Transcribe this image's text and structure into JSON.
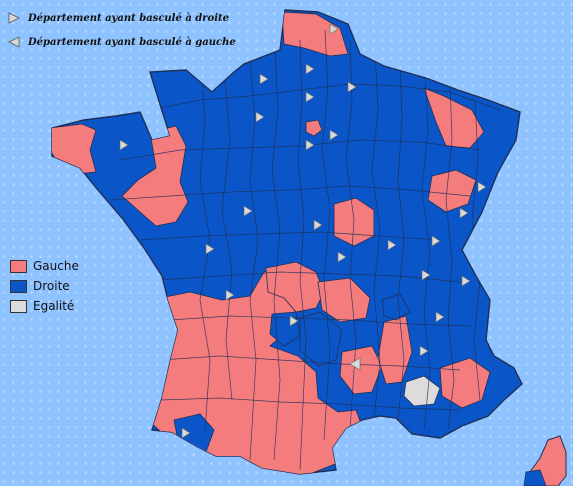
{
  "map": {
    "colors": {
      "gauche": "#f47c7c",
      "droite": "#0a56c9",
      "egalite": "#dcdcdc",
      "sea": "#8fc3ff",
      "border": "#1f2f55",
      "arrow": "#d8d8d8"
    },
    "legend_markers": [
      {
        "label": "Département ayant basculé à droite",
        "icon": "triangle-right-icon"
      },
      {
        "label": "Département ayant basculé à gauche",
        "icon": "triangle-left-icon"
      }
    ],
    "legend_colors": [
      {
        "label": "Gauche",
        "color": "#f47c7c"
      },
      {
        "label": "Droite",
        "color": "#0a56c9"
      },
      {
        "label": "Egalité",
        "color": "#dcdcdc"
      }
    ]
  }
}
